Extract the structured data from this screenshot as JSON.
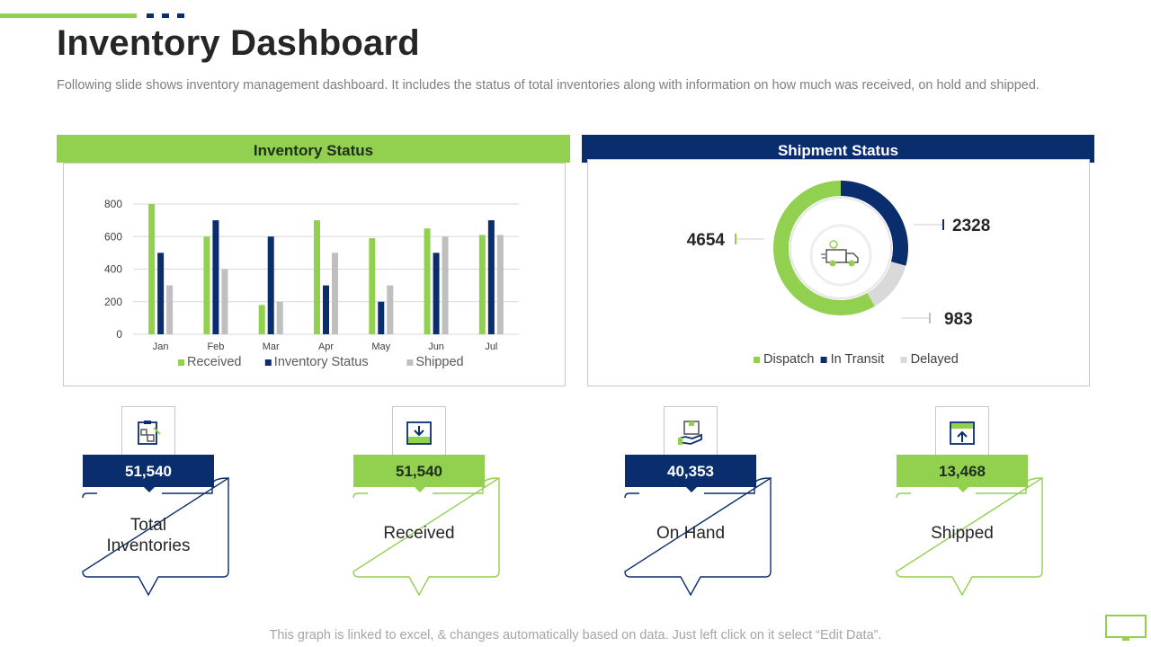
{
  "header": {
    "title": "Inventory Dashboard",
    "subtitle": "Following slide shows inventory management dashboard. It includes the status of total inventories along with information on how much was received, on hold and shipped."
  },
  "colors": {
    "green": "#92d050",
    "navy": "#0a2d6e",
    "gray": "#bfbfbf"
  },
  "inventory_panel": {
    "title": "Inventory Status"
  },
  "shipment_panel": {
    "title": "Shipment Status"
  },
  "chart_data": [
    {
      "type": "bar",
      "title": "Inventory Status",
      "categories": [
        "Jan",
        "Feb",
        "Mar",
        "Apr",
        "May",
        "Jun",
        "Jul"
      ],
      "series": [
        {
          "name": "Received",
          "color": "#92d050",
          "values": [
            800,
            600,
            180,
            700,
            590,
            650,
            610
          ]
        },
        {
          "name": "Inventory Status",
          "color": "#0a2d6e",
          "values": [
            500,
            700,
            600,
            300,
            200,
            500,
            700
          ]
        },
        {
          "name": "Shipped",
          "color": "#bfbfbf",
          "values": [
            300,
            400,
            200,
            500,
            300,
            600,
            610
          ]
        }
      ],
      "yticks": [
        "0",
        "200",
        "400",
        "600",
        "800"
      ],
      "ylim": [
        0,
        800
      ],
      "grid": true,
      "legend": "bottom"
    },
    {
      "type": "pie",
      "title": "Shipment Status",
      "style": "donut",
      "labels": [
        "Dispatch",
        "In Transit",
        "Delayed"
      ],
      "values": [
        4654,
        2328,
        983
      ],
      "value_labels": [
        "4654",
        "2328",
        "983"
      ],
      "colors": [
        "#92d050",
        "#0a2d6e",
        "#d9d9d9"
      ],
      "center_icon": "delivery-truck-icon",
      "legend": "bottom"
    }
  ],
  "kpis": [
    {
      "value": "51,540",
      "label_line1": "Total",
      "label_line2": "Inventories",
      "icon": "clipboard-boxes-icon",
      "theme": "blue"
    },
    {
      "value": "51,540",
      "label_line1": "Received",
      "label_line2": "",
      "icon": "inbox-download-icon",
      "theme": "green"
    },
    {
      "value": "40,353",
      "label_line1": "On Hand",
      "label_line2": "",
      "icon": "hand-box-icon",
      "theme": "blue"
    },
    {
      "value": "13,468",
      "label_line1": "Shipped",
      "label_line2": "",
      "icon": "upload-box-icon",
      "theme": "green"
    }
  ],
  "footer": {
    "note": "This graph is linked to excel, & changes automatically based on data. Just left click on it select “Edit Data”."
  }
}
